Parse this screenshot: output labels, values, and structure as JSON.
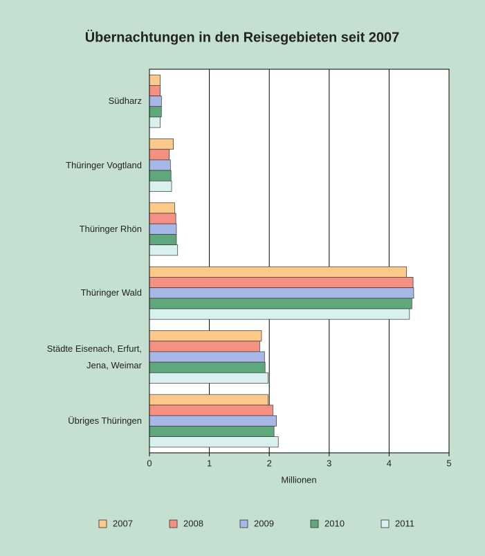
{
  "chart_data": {
    "type": "bar",
    "orientation": "horizontal",
    "title": "Übernachtungen in den Reisegebieten seit 2007",
    "x_label": "Millionen",
    "categories": [
      "Südharz",
      "Thüringer Vogtland",
      "Thüringer Rhön",
      "Thüringer Wald",
      "Städte Eisenach, Erfurt,\nJena, Weimar",
      "Übriges Thüringen"
    ],
    "series": [
      {
        "name": "2007",
        "color": "#fdc98a",
        "values": [
          0.18,
          0.4,
          0.42,
          4.29,
          1.87,
          1.98
        ]
      },
      {
        "name": "2008",
        "color": "#f59182",
        "values": [
          0.18,
          0.33,
          0.44,
          4.4,
          1.84,
          2.06
        ]
      },
      {
        "name": "2009",
        "color": "#a7b8e6",
        "values": [
          0.2,
          0.35,
          0.45,
          4.41,
          1.92,
          2.12
        ]
      },
      {
        "name": "2010",
        "color": "#5ea87c",
        "values": [
          0.2,
          0.36,
          0.45,
          4.38,
          1.93,
          2.08
        ]
      },
      {
        "name": "2011",
        "color": "#d9f1ee",
        "values": [
          0.18,
          0.37,
          0.47,
          4.34,
          1.98,
          2.15
        ]
      }
    ],
    "xlim": [
      0,
      5
    ],
    "xticks": [
      0,
      1,
      2,
      3,
      4,
      5
    ],
    "grid": true,
    "legend": "bottom"
  }
}
